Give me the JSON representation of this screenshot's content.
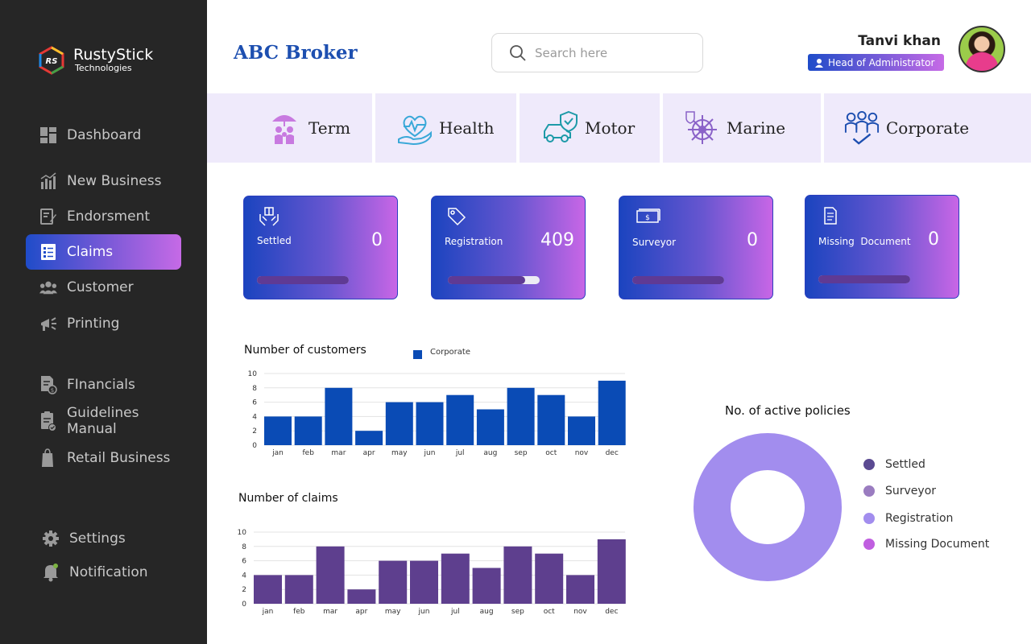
{
  "app": {
    "logo_name": "RustyStick",
    "logo_sub": "Technologies",
    "logo_mark_text": "RS"
  },
  "sidebar": {
    "items": [
      {
        "label": "Dashboard",
        "icon": "dashboard-icon"
      },
      {
        "label": "New Business",
        "icon": "bar-chart-icon"
      },
      {
        "label": "Endorsment",
        "icon": "edit-document-icon"
      },
      {
        "label": "Claims",
        "icon": "claims-list-icon",
        "active": true
      },
      {
        "label": "Customer",
        "icon": "users-icon"
      },
      {
        "label": "Printing",
        "icon": "megaphone-icon"
      },
      {
        "label": "FInancials",
        "icon": "financial-document-icon"
      },
      {
        "label": "Guidelines Manual",
        "icon": "clipboard-check-icon"
      },
      {
        "label": "Retail Business",
        "icon": "shopping-bag-icon"
      },
      {
        "label": "Settings",
        "icon": "gear-icon"
      },
      {
        "label": "Notification",
        "icon": "bell-icon"
      }
    ]
  },
  "header": {
    "brand": "ABC Broker",
    "search_placeholder": "Search here",
    "user_name": "Tanvi khan",
    "user_role": "Head of Administrator"
  },
  "categories": [
    {
      "label": "Term",
      "icon": "family-umbrella-icon"
    },
    {
      "label": "Health",
      "icon": "heart-hand-icon"
    },
    {
      "label": "Motor",
      "icon": "car-shield-icon"
    },
    {
      "label": "Marine",
      "icon": "ship-wheel-icon"
    },
    {
      "label": "Corporate",
      "icon": "group-icon"
    }
  ],
  "stats": [
    {
      "label": "Settled",
      "value": "0",
      "progress": 1.0,
      "icon": "hands-box-icon"
    },
    {
      "label": "Registration",
      "value": "409",
      "progress": 0.84,
      "icon": "tag-icon"
    },
    {
      "label": "Surveyor",
      "value": "0",
      "progress": 1.0,
      "icon": "money-stack-icon"
    },
    {
      "label": "Missing  Document",
      "value": "0",
      "progress": 1.0,
      "icon": "document-icon"
    }
  ],
  "colors": {
    "bar_customers": "#0a4bb5",
    "bar_claims": "#5e3f8e",
    "donut": "#a28dee",
    "legend_settled": "#5b4a92",
    "legend_surveyor": "#9a7cc0",
    "legend_registration": "#a28dee",
    "legend_missing": "#c05fe0"
  },
  "chart_data": [
    {
      "type": "bar",
      "title": "Number of customers",
      "categories": [
        "jan",
        "feb",
        "mar",
        "apr",
        "may",
        "jun",
        "jul",
        "aug",
        "sep",
        "oct",
        "nov",
        "dec"
      ],
      "series": [
        {
          "name": "Corporate",
          "values": [
            4,
            4,
            8,
            2,
            6,
            6,
            7,
            5,
            8,
            7,
            4,
            9
          ]
        }
      ],
      "yticks": [
        "0",
        "2",
        "4",
        "6",
        "8",
        "10"
      ],
      "ylim": [
        0,
        10
      ],
      "grid": true,
      "legend": "top"
    },
    {
      "type": "bar",
      "title": "Number of claims",
      "categories": [
        "jan",
        "feb",
        "mar",
        "apr",
        "may",
        "jun",
        "jul",
        "aug",
        "sep",
        "oct",
        "nov",
        "dec"
      ],
      "series": [
        {
          "values": [
            4,
            4,
            8,
            2,
            6,
            6,
            7,
            5,
            8,
            7,
            4,
            9
          ]
        }
      ],
      "yticks": [
        "0",
        "2",
        "4",
        "6",
        "8",
        "10"
      ],
      "ylim": [
        0,
        10
      ],
      "grid": true,
      "legend": "none"
    },
    {
      "type": "pie",
      "title": "No. of active policies",
      "categories": [
        "Settled",
        "Surveyor",
        "Registration",
        "Missing Document"
      ],
      "values": [
        0,
        0,
        409,
        0
      ],
      "legend": "right"
    }
  ]
}
